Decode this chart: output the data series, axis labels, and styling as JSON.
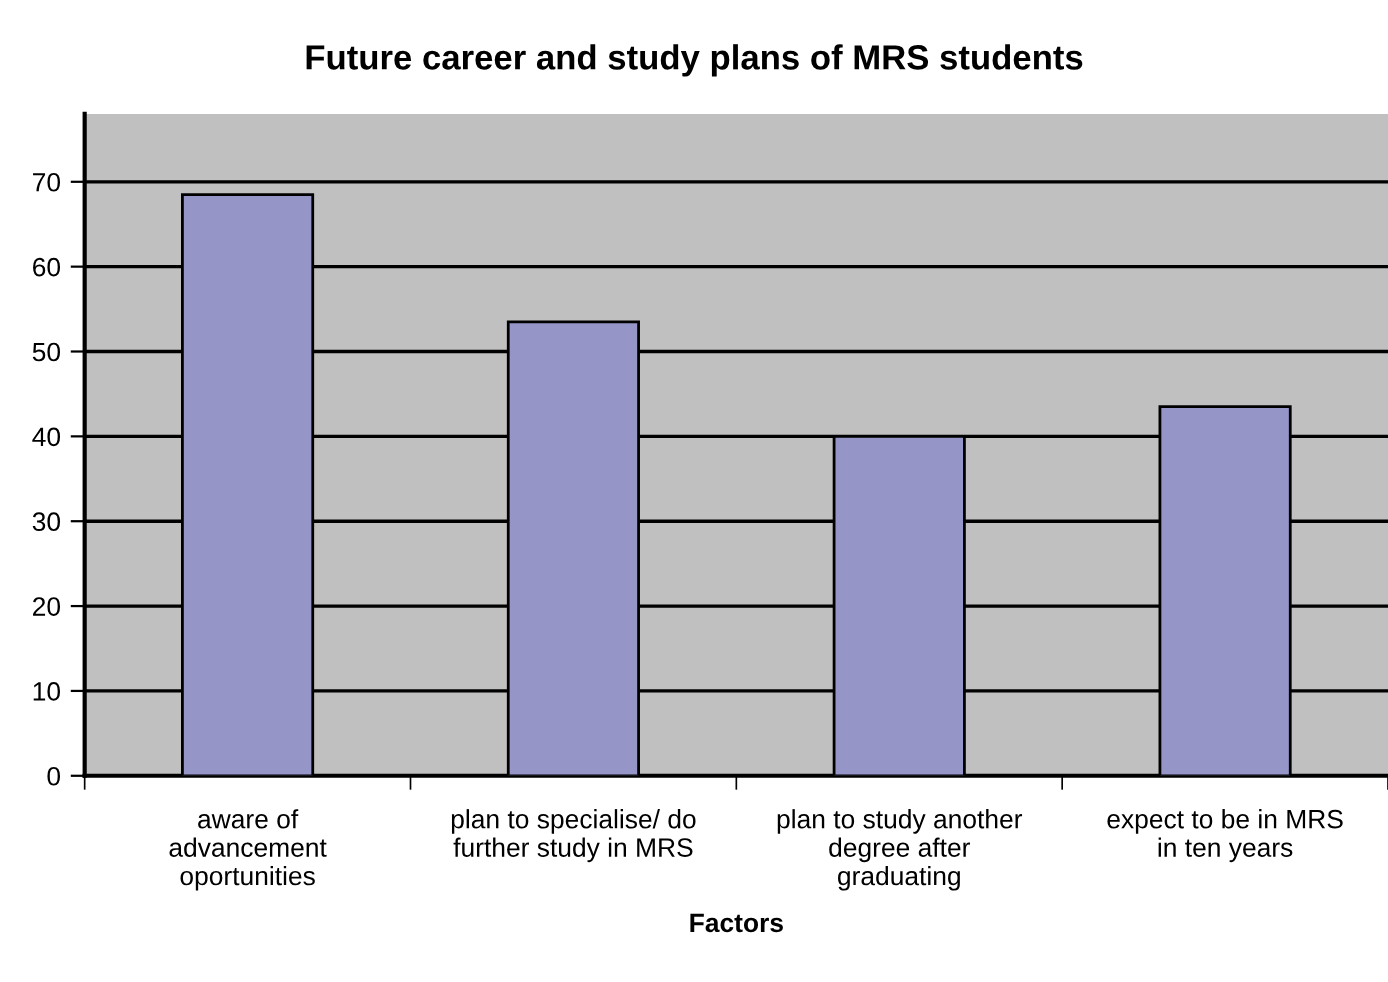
{
  "chart_data": {
    "type": "bar",
    "title": "Future career and study plans of MRS students",
    "xlabel": "Factors",
    "categories": [
      "aware of\nadvancement\noportunities",
      "plan to specialise/ do\nfurther study in MRS",
      "plan to study another\ndegree after\ngraduating",
      "expect to be in MRS\nin ten years"
    ],
    "values": [
      68.5,
      53.5,
      40,
      43.5
    ],
    "color": "#9595c8",
    "ylim": [
      0,
      78
    ],
    "yticks": [
      0,
      10,
      20,
      30,
      40,
      50,
      60,
      70
    ],
    "grid": "y"
  }
}
